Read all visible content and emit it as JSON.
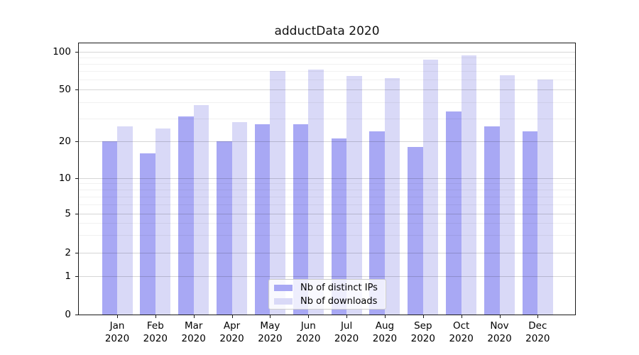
{
  "figure": {
    "title": "adductData 2020"
  },
  "chart_data": {
    "type": "bar",
    "title": "adductData 2020",
    "categories": [
      "Jan 2020",
      "Feb 2020",
      "Mar 2020",
      "Apr 2020",
      "May 2020",
      "Jun 2020",
      "Jul 2020",
      "Aug 2020",
      "Sep 2020",
      "Oct 2020",
      "Nov 2020",
      "Dec 2020"
    ],
    "x_tick_months": [
      "Jan",
      "Feb",
      "Mar",
      "Apr",
      "May",
      "Jun",
      "Jul",
      "Aug",
      "Sep",
      "Oct",
      "Nov",
      "Dec"
    ],
    "x_tick_year": "2020",
    "series": [
      {
        "name": "Nb of distinct IPs",
        "color": "#a8a8f4",
        "values": [
          20,
          16,
          31,
          20,
          27,
          27,
          21,
          24,
          18,
          34,
          26,
          24
        ]
      },
      {
        "name": "Nb of downloads",
        "color": "#d9d9f7",
        "values": [
          26,
          25,
          38,
          28,
          70,
          72,
          64,
          62,
          87,
          94,
          65,
          60
        ]
      }
    ],
    "xlabel": "",
    "ylabel": "",
    "yscale": "log-like with linear 0-1 segment",
    "ylim": [
      0,
      100
    ],
    "y_major_ticks": [
      0,
      1,
      2,
      5,
      10,
      20,
      50,
      100
    ],
    "y_minor_gridlines": [
      3,
      4,
      6,
      7,
      8,
      9,
      30,
      40,
      60,
      70,
      80,
      90
    ],
    "grid": true,
    "legend_position": "lower center"
  },
  "colors": {
    "background": "#ffffff",
    "bar_distinct_ips": "#a8a8f4",
    "bar_downloads": "#d9d9f7",
    "grid_major": "#d6d6d6",
    "grid_minor": "#efefef",
    "spine": "#1a1a1a",
    "legend_border": "#cccccc"
  }
}
